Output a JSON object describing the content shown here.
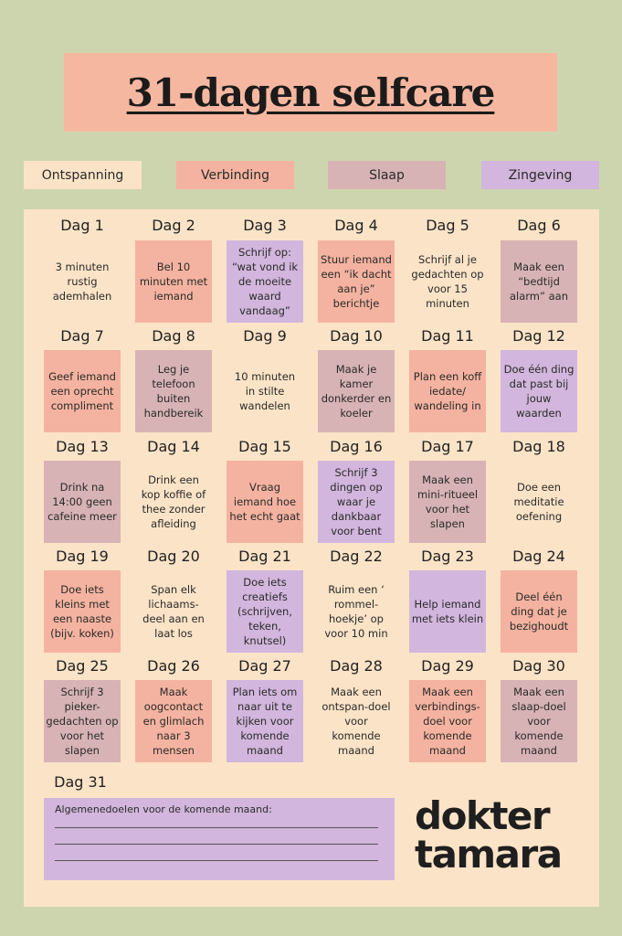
{
  "title": "31-dagen selfcare",
  "legend": [
    {
      "label": "Ontspanning",
      "color": "#fbe3c7"
    },
    {
      "label": "Verbinding",
      "color": "#f4b3a0"
    },
    {
      "label": "Slaap",
      "color": "#d7b3b5"
    },
    {
      "label": "Zingeving",
      "color": "#d2b6dd"
    }
  ],
  "days": [
    {
      "title": "Dag 1",
      "text": "3 minuten rustig ademhalen",
      "cat": "ont"
    },
    {
      "title": "Dag 2",
      "text": "Bel 10 minuten met iemand",
      "cat": "ver"
    },
    {
      "title": "Dag 3",
      "text": "Schrijf op: “wat vond ik de moeite waard vandaag”",
      "cat": "zin"
    },
    {
      "title": "Dag 4",
      "text": "Stuur iemand een “ik dacht aan je” berichtje",
      "cat": "ver"
    },
    {
      "title": "Dag 5",
      "text": "Schrijf al je gedachten op voor 15 minuten",
      "cat": "ont"
    },
    {
      "title": "Dag 6",
      "text": "Maak een “bedtijd alarm” aan",
      "cat": "sla"
    },
    {
      "title": "Dag 7",
      "text": "Geef iemand een oprecht compliment",
      "cat": "ver"
    },
    {
      "title": "Dag 8",
      "text": "Leg je telefoon buiten handbereik",
      "cat": "sla"
    },
    {
      "title": "Dag 9",
      "text": "10 minuten in stilte wandelen",
      "cat": "ont"
    },
    {
      "title": "Dag 10",
      "text": "Maak je kamer donkerder en koeler",
      "cat": "sla"
    },
    {
      "title": "Dag 11",
      "text": "Plan een koff iedate/ wandeling in",
      "cat": "ver"
    },
    {
      "title": "Dag 12",
      "text": "Doe één ding dat past bij jouw waarden",
      "cat": "zin"
    },
    {
      "title": "Dag 13",
      "text": "Drink na 14:00 geen cafeine meer",
      "cat": "sla"
    },
    {
      "title": "Dag 14",
      "text": "Drink een kop koffie of thee zonder afleiding",
      "cat": "ont"
    },
    {
      "title": "Dag 15",
      "text": "Vraag iemand hoe het echt gaat",
      "cat": "ver"
    },
    {
      "title": "Dag 16",
      "text": "Schrijf 3 dingen op waar je dankbaar voor bent",
      "cat": "zin"
    },
    {
      "title": "Dag 17",
      "text": "Maak een mini-ritueel voor het slapen",
      "cat": "sla"
    },
    {
      "title": "Dag 18",
      "text": "Doe een meditatie oefening",
      "cat": "ont"
    },
    {
      "title": "Dag 19",
      "text": "Doe iets kleins met een naaste (bijv. koken)",
      "cat": "ver"
    },
    {
      "title": "Dag 20",
      "text": "Span elk lichaams-deel aan en laat los",
      "cat": "ont"
    },
    {
      "title": "Dag 21",
      "text": "Doe iets creatiefs (schrijven, teken, knutsel)",
      "cat": "zin"
    },
    {
      "title": "Dag 22",
      "text": "Ruim een ‘ rommel-hoekje’ op voor 10 min",
      "cat": "ont"
    },
    {
      "title": "Dag 23",
      "text": "Help iemand met iets klein",
      "cat": "zin"
    },
    {
      "title": "Dag 24",
      "text": "Deel één ding dat je bezighoudt",
      "cat": "ver"
    },
    {
      "title": "Dag 25",
      "text": "Schrijf 3 pieker-gedachten op voor het slapen",
      "cat": "sla"
    },
    {
      "title": "Dag 26",
      "text": "Maak oogcontact en glimlach naar 3 mensen",
      "cat": "ver"
    },
    {
      "title": "Dag 27",
      "text": "Plan iets om naar uit te kijken voor komende maand",
      "cat": "zin"
    },
    {
      "title": "Dag 28",
      "text": "Maak een ontspan-doel voor komende maand",
      "cat": "ont"
    },
    {
      "title": "Dag 29",
      "text": "Maak een verbindings-doel voor komende maand",
      "cat": "ver"
    },
    {
      "title": "Dag 30",
      "text": "Maak een slaap-doel voor komende maand",
      "cat": "sla"
    }
  ],
  "day31": {
    "title": "Dag 31",
    "goals_label": "Algemenedoelen voor de komende maand:"
  },
  "brand": {
    "line1": "dokter",
    "line2": "tamara"
  }
}
